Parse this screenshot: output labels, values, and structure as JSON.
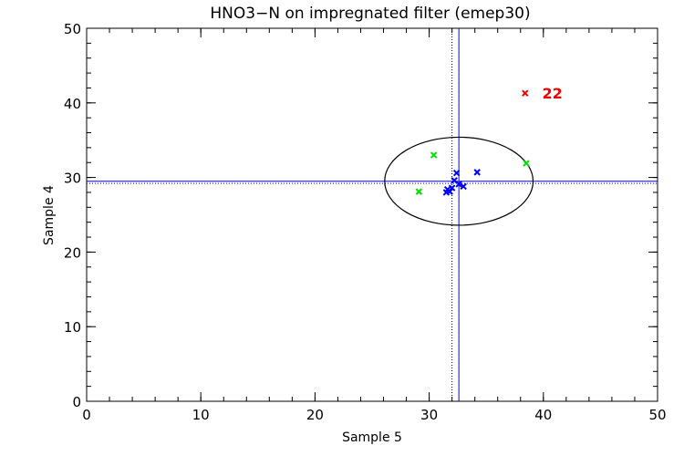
{
  "chart_data": {
    "type": "scatter",
    "title": "HNO3−N on impregnated filter (emep30)",
    "xlabel": "Sample 5",
    "ylabel": "Sample 4",
    "xlim": [
      0,
      50
    ],
    "ylim": [
      0,
      50
    ],
    "x_ticks": [
      "0",
      "10",
      "20",
      "30",
      "40",
      "50"
    ],
    "y_ticks": [
      "0",
      "10",
      "20",
      "30",
      "40",
      "50"
    ],
    "grid": false,
    "series": [
      {
        "color": "#0000ff",
        "marker": "x",
        "points": [
          [
            31.5,
            28.0
          ],
          [
            31.6,
            28.4
          ],
          [
            31.8,
            28.1
          ],
          [
            32.0,
            28.6
          ],
          [
            32.2,
            29.6
          ],
          [
            32.4,
            30.6
          ],
          [
            32.6,
            29.1
          ],
          [
            33.0,
            28.8
          ],
          [
            34.2,
            30.7
          ]
        ]
      },
      {
        "color": "#00dd00",
        "marker": "x",
        "points": [
          [
            29.1,
            28.1
          ],
          [
            30.4,
            33.0
          ],
          [
            38.5,
            31.9
          ]
        ]
      },
      {
        "color": "#ee0000",
        "marker": "x",
        "points": [
          [
            38.4,
            41.3
          ]
        ]
      }
    ],
    "annotations": [
      {
        "text": "22",
        "color": "#ee0000",
        "x": 39.9,
        "y": 41.3
      }
    ],
    "reference_lines": {
      "mean_x": 32.6,
      "mean_y": 29.5,
      "median_x": 32.0,
      "median_y": 29.2,
      "mean_color": "#0000ff",
      "median_color": "#000000"
    },
    "ellipse": {
      "center": [
        32.6,
        29.5
      ],
      "radius_x": 6.5,
      "radius_y": 5.9,
      "color": "#000000"
    }
  }
}
